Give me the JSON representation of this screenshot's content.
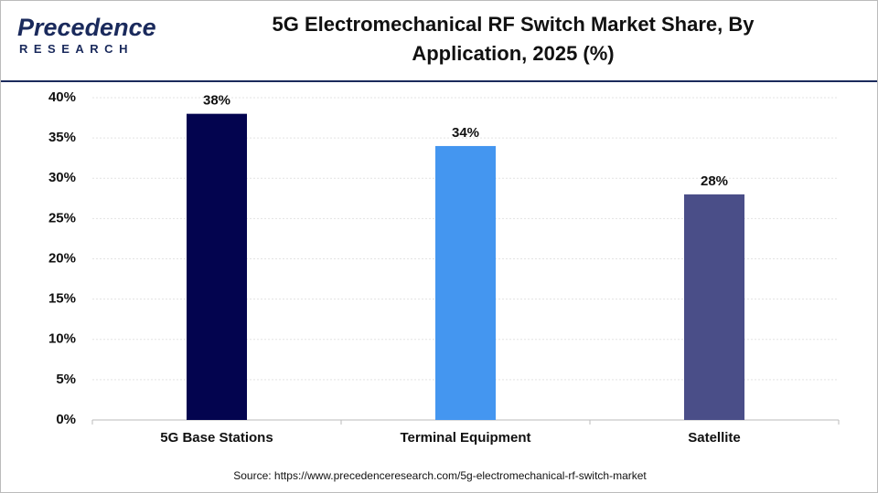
{
  "logo": {
    "name": "Precedence",
    "tagline": "RESEARCH"
  },
  "chart_data": {
    "type": "bar",
    "title": "5G Electromechanical RF Switch Market Share, By Application, 2025 (%)",
    "categories": [
      "5G Base Stations",
      "Terminal Equipment",
      "Satellite"
    ],
    "values": [
      38,
      34,
      28
    ],
    "value_labels": [
      "38%",
      "34%",
      "28%"
    ],
    "colors": [
      "#03044f",
      "#4496f0",
      "#4a4e88"
    ],
    "ylim": [
      0,
      40
    ],
    "yticks": [
      {
        "value": 0,
        "label": "0%"
      },
      {
        "value": 5,
        "label": "5%"
      },
      {
        "value": 10,
        "label": "10%"
      },
      {
        "value": 15,
        "label": "15%"
      },
      {
        "value": 20,
        "label": "20%"
      },
      {
        "value": 25,
        "label": "25%"
      },
      {
        "value": 30,
        "label": "30%"
      },
      {
        "value": 35,
        "label": "35%"
      },
      {
        "value": 40,
        "label": "40%"
      }
    ],
    "grid": true,
    "source": "Source: https://www.precedenceresearch.com/5g-electromechanical-rf-switch-market"
  }
}
